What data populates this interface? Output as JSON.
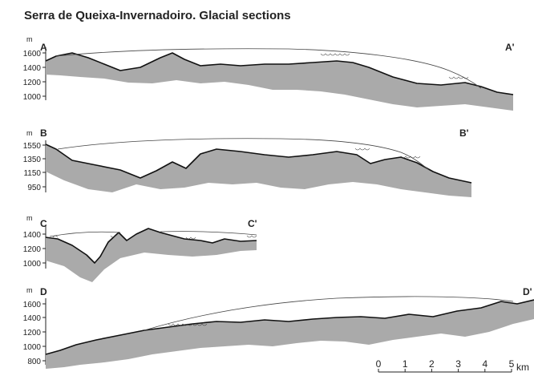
{
  "title": "Serra de Queixa-Invernadoiro. Glacial sections",
  "sections": [
    {
      "id": "A",
      "start_label": "A",
      "end_label": "A'",
      "unit": "m",
      "ticks": [
        "1600",
        "1400",
        "1200",
        "1000"
      ]
    },
    {
      "id": "B",
      "start_label": "B",
      "end_label": "B'",
      "unit": "m",
      "ticks": [
        "1550",
        "1350",
        "1150",
        "950"
      ]
    },
    {
      "id": "C",
      "start_label": "C",
      "end_label": "C'",
      "unit": "m",
      "ticks": [
        "1400",
        "1200",
        "1000"
      ]
    },
    {
      "id": "D",
      "start_label": "D",
      "end_label": "D'",
      "unit": "m",
      "ticks": [
        "1600",
        "1400",
        "1200",
        "1000",
        "800"
      ]
    }
  ],
  "scale_bar": {
    "labels": [
      "0",
      "1",
      "2",
      "3",
      "4",
      "5"
    ],
    "unit": "km"
  },
  "colors": {
    "bedrock": "#aaaaaa",
    "surface": "#111111",
    "ice": "#444444"
  }
}
